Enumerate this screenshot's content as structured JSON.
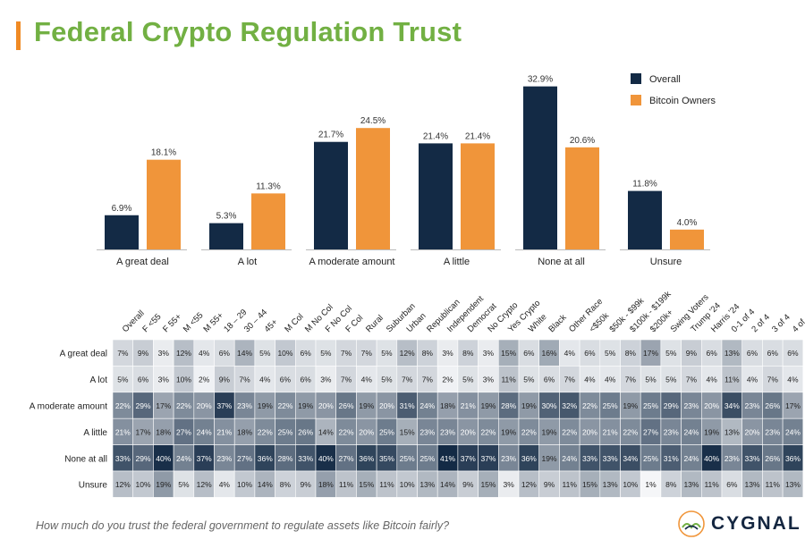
{
  "title": "Federal Crypto Regulation Trust",
  "footer_question": "How much do you trust the federal government to regulate assets like Bitcoin fairly?",
  "logo": {
    "text": "CYGNAL",
    "icon": "cygnal-swan-logo-icon"
  },
  "colors": {
    "title": "#72b043",
    "accent": "#f08a24",
    "overall": "#132a45",
    "bitcoin": "#f0953a",
    "heat_dark": "#132a45",
    "heat_light": "#f5f6f8"
  },
  "chart_data": [
    {
      "type": "bar",
      "categories": [
        "A great deal",
        "A lot",
        "A moderate amount",
        "A little",
        "None at all",
        "Unsure"
      ],
      "series": [
        {
          "name": "Overall",
          "values": [
            6.9,
            5.3,
            21.7,
            21.4,
            32.9,
            11.8
          ],
          "labels": [
            "6.9%",
            "5.3%",
            "21.7%",
            "21.4%",
            "32.9%",
            "11.8%"
          ]
        },
        {
          "name": "Bitcoin Owners",
          "values": [
            18.1,
            11.3,
            24.5,
            21.4,
            20.6,
            4.0
          ],
          "labels": [
            "18.1%",
            "11.3%",
            "24.5%",
            "21.4%",
            "20.6%",
            "4.0%"
          ]
        }
      ],
      "ylim": [
        0,
        35
      ],
      "legend": "top-right",
      "grid": false
    },
    {
      "type": "heatmap",
      "columns": [
        "Overall",
        "F <55",
        "F 55+",
        "M <55",
        "M 55+",
        "18 – 29",
        "30 – 44",
        "45+",
        "M Col",
        "M No Col",
        "F No Col",
        "F Col",
        "Rural",
        "Suburban",
        "Urban",
        "Republican",
        "Independent",
        "Democrat",
        "No Crypto",
        "Yes Crypto",
        "White",
        "Black",
        "Other Race",
        "<$50k",
        "$50k - $99k",
        "$100k - $199k",
        "$200k+",
        "Swing Voters",
        "Trump '24",
        "Harris '24",
        "0-1 of 4",
        "2 of 4",
        "3 of 4",
        "4 of 4"
      ],
      "rows": [
        "A great deal",
        "A lot",
        "A moderate amount",
        "A little",
        "None at all",
        "Unsure"
      ],
      "values": [
        [
          7,
          9,
          3,
          12,
          4,
          6,
          14,
          5,
          10,
          6,
          5,
          7,
          7,
          5,
          12,
          8,
          3,
          8,
          3,
          15,
          6,
          16,
          4,
          6,
          5,
          8,
          17,
          5,
          9,
          6,
          13,
          6,
          6,
          6
        ],
        [
          5,
          6,
          3,
          10,
          2,
          9,
          7,
          4,
          6,
          6,
          3,
          7,
          4,
          5,
          7,
          7,
          2,
          5,
          3,
          11,
          5,
          6,
          7,
          4,
          4,
          7,
          5,
          5,
          7,
          4,
          11,
          4,
          7,
          4
        ],
        [
          22,
          29,
          17,
          22,
          20,
          37,
          23,
          19,
          22,
          19,
          20,
          26,
          19,
          20,
          31,
          24,
          18,
          21,
          19,
          28,
          19,
          30,
          32,
          22,
          25,
          19,
          25,
          29,
          23,
          20,
          34,
          23,
          26,
          17
        ],
        [
          21,
          17,
          18,
          27,
          24,
          21,
          18,
          22,
          25,
          26,
          14,
          22,
          20,
          25,
          15,
          23,
          23,
          20,
          22,
          19,
          22,
          19,
          22,
          20,
          21,
          22,
          27,
          23,
          24,
          19,
          13,
          20,
          23,
          24
        ],
        [
          33,
          29,
          40,
          24,
          37,
          23,
          27,
          36,
          28,
          33,
          40,
          27,
          36,
          35,
          25,
          25,
          41,
          37,
          37,
          23,
          36,
          19,
          24,
          33,
          33,
          34,
          25,
          31,
          24,
          40,
          23,
          33,
          26,
          36
        ],
        [
          12,
          10,
          19,
          5,
          12,
          4,
          10,
          14,
          8,
          9,
          18,
          11,
          15,
          11,
          10,
          13,
          14,
          9,
          15,
          3,
          12,
          9,
          11,
          15,
          13,
          10,
          1,
          8,
          13,
          11,
          6,
          13,
          11,
          13
        ]
      ],
      "value_suffix": "%"
    }
  ]
}
